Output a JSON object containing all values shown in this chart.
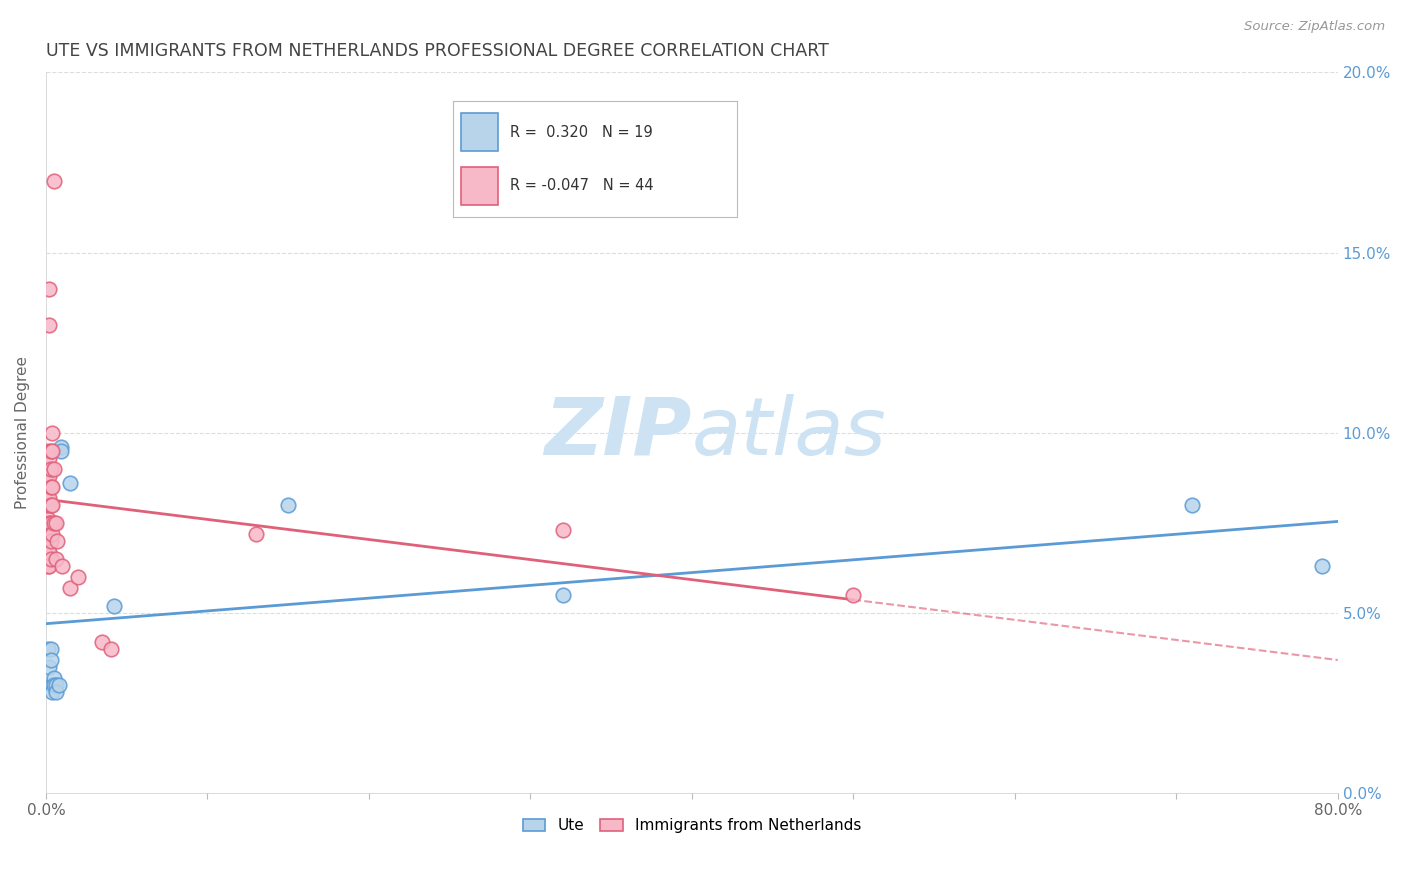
{
  "title": "UTE VS IMMIGRANTS FROM NETHERLANDS PROFESSIONAL DEGREE CORRELATION CHART",
  "source": "Source: ZipAtlas.com",
  "ylabel": "Professional Degree",
  "r_ute": 0.32,
  "n_ute": 19,
  "r_netherlands": -0.047,
  "n_netherlands": 44,
  "ute_face_color": "#b8d4ea",
  "ute_edge_color": "#5b9bd5",
  "nl_face_color": "#f7b8c8",
  "nl_edge_color": "#e0607a",
  "ute_line_color": "#5b9bd5",
  "nl_line_color": "#e0607a",
  "watermark_color": "#cde3f3",
  "xlim": [
    0.0,
    0.8
  ],
  "ylim": [
    0.0,
    0.2
  ],
  "yticks": [
    0.0,
    0.05,
    0.1,
    0.15,
    0.2
  ],
  "xtick_positions": [
    0.0,
    0.1,
    0.2,
    0.3,
    0.4,
    0.5,
    0.6,
    0.7,
    0.8
  ],
  "ute_points": [
    [
      0.001,
      0.04
    ],
    [
      0.002,
      0.035
    ],
    [
      0.003,
      0.04
    ],
    [
      0.003,
      0.037
    ],
    [
      0.004,
      0.03
    ],
    [
      0.004,
      0.028
    ],
    [
      0.005,
      0.032
    ],
    [
      0.005,
      0.03
    ],
    [
      0.006,
      0.03
    ],
    [
      0.006,
      0.028
    ],
    [
      0.008,
      0.03
    ],
    [
      0.009,
      0.096
    ],
    [
      0.009,
      0.095
    ],
    [
      0.015,
      0.086
    ],
    [
      0.042,
      0.052
    ],
    [
      0.15,
      0.08
    ],
    [
      0.32,
      0.055
    ],
    [
      0.71,
      0.08
    ],
    [
      0.79,
      0.063
    ]
  ],
  "nl_points": [
    [
      0.001,
      0.063
    ],
    [
      0.001,
      0.068
    ],
    [
      0.001,
      0.072
    ],
    [
      0.001,
      0.076
    ],
    [
      0.001,
      0.08
    ],
    [
      0.001,
      0.082
    ],
    [
      0.001,
      0.086
    ],
    [
      0.001,
      0.09
    ],
    [
      0.001,
      0.095
    ],
    [
      0.002,
      0.063
    ],
    [
      0.002,
      0.067
    ],
    [
      0.002,
      0.072
    ],
    [
      0.002,
      0.075
    ],
    [
      0.002,
      0.082
    ],
    [
      0.002,
      0.088
    ],
    [
      0.002,
      0.093
    ],
    [
      0.002,
      0.13
    ],
    [
      0.002,
      0.14
    ],
    [
      0.003,
      0.065
    ],
    [
      0.003,
      0.07
    ],
    [
      0.003,
      0.075
    ],
    [
      0.003,
      0.08
    ],
    [
      0.003,
      0.085
    ],
    [
      0.003,
      0.09
    ],
    [
      0.003,
      0.095
    ],
    [
      0.004,
      0.072
    ],
    [
      0.004,
      0.08
    ],
    [
      0.004,
      0.085
    ],
    [
      0.004,
      0.095
    ],
    [
      0.004,
      0.1
    ],
    [
      0.005,
      0.075
    ],
    [
      0.005,
      0.09
    ],
    [
      0.005,
      0.17
    ],
    [
      0.006,
      0.065
    ],
    [
      0.006,
      0.075
    ],
    [
      0.007,
      0.07
    ],
    [
      0.01,
      0.063
    ],
    [
      0.015,
      0.057
    ],
    [
      0.02,
      0.06
    ],
    [
      0.035,
      0.042
    ],
    [
      0.04,
      0.04
    ],
    [
      0.13,
      0.072
    ],
    [
      0.32,
      0.073
    ],
    [
      0.5,
      0.055
    ]
  ],
  "background_color": "#ffffff",
  "grid_color": "#dddddd",
  "title_color": "#444444",
  "right_axis_color": "#5b9bd5",
  "tick_label_color": "#666666"
}
